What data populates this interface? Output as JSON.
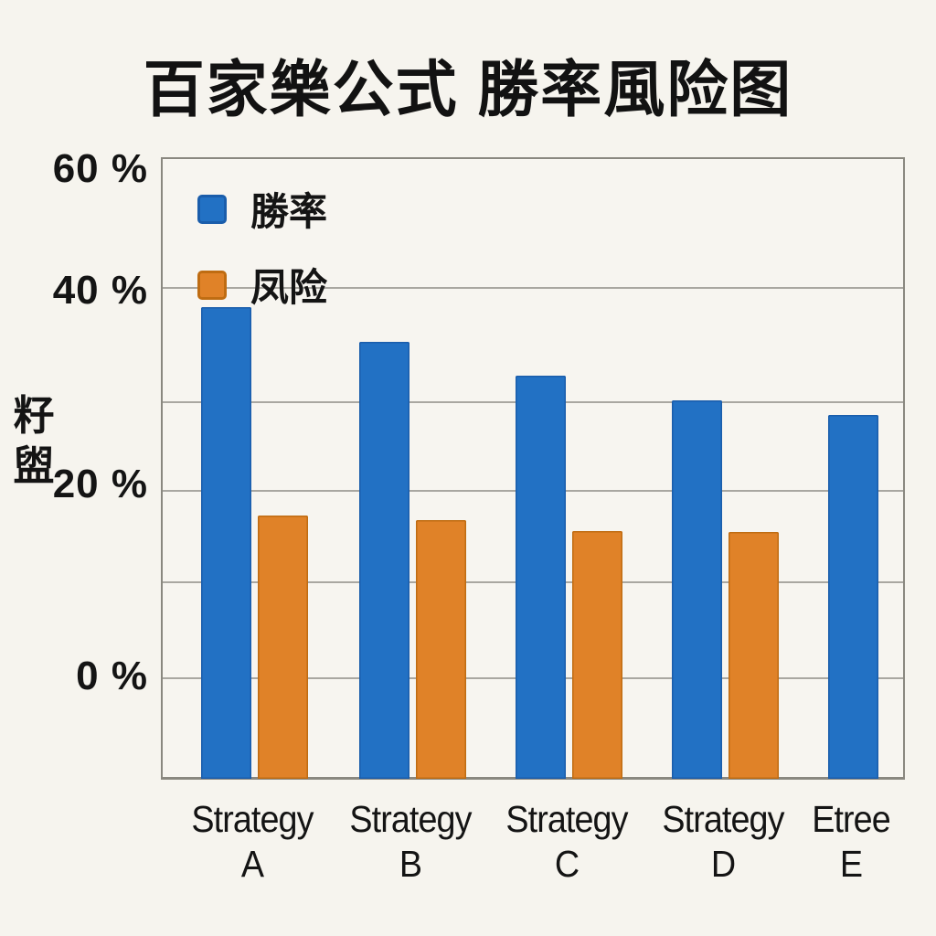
{
  "page": {
    "background": "#f6f4ee",
    "frame_color": "#8a8880",
    "grid_color": "#a9a7a1",
    "text_color": "#141414"
  },
  "chart_data": {
    "type": "bar",
    "title": "百家樂公式 勝率風险图",
    "ylabel_chars": [
      "籽",
      "盥"
    ],
    "categories": [
      {
        "line1": "Strategy",
        "line2": "A"
      },
      {
        "line1": "Strategy",
        "line2": "B"
      },
      {
        "line1": "Strategy",
        "line2": "C"
      },
      {
        "line1": "Strategy",
        "line2": "D"
      },
      {
        "line1": "Etree",
        "line2": "E"
      }
    ],
    "series": [
      {
        "name": "勝率",
        "color": "#2271c4",
        "edge": "#1a5dab",
        "values": [
          38,
          34.5,
          31,
          28.5,
          27
        ]
      },
      {
        "name": "凤险",
        "color": "#e08228",
        "edge": "#bf6c12",
        "values": [
          16.7,
          16.2,
          15.1,
          15,
          null
        ]
      }
    ],
    "yticks": [
      {
        "label": "60 %",
        "value": 60
      },
      {
        "label": "40 %",
        "value": 40
      },
      {
        "label": "20 %",
        "value": 20
      },
      {
        "label": "0 %",
        "value": 0
      }
    ],
    "ylim": [
      0,
      60
    ],
    "unit": "%",
    "grid": true,
    "legend_position": "upper left",
    "note_bars_overshoot_zero_line": true
  }
}
